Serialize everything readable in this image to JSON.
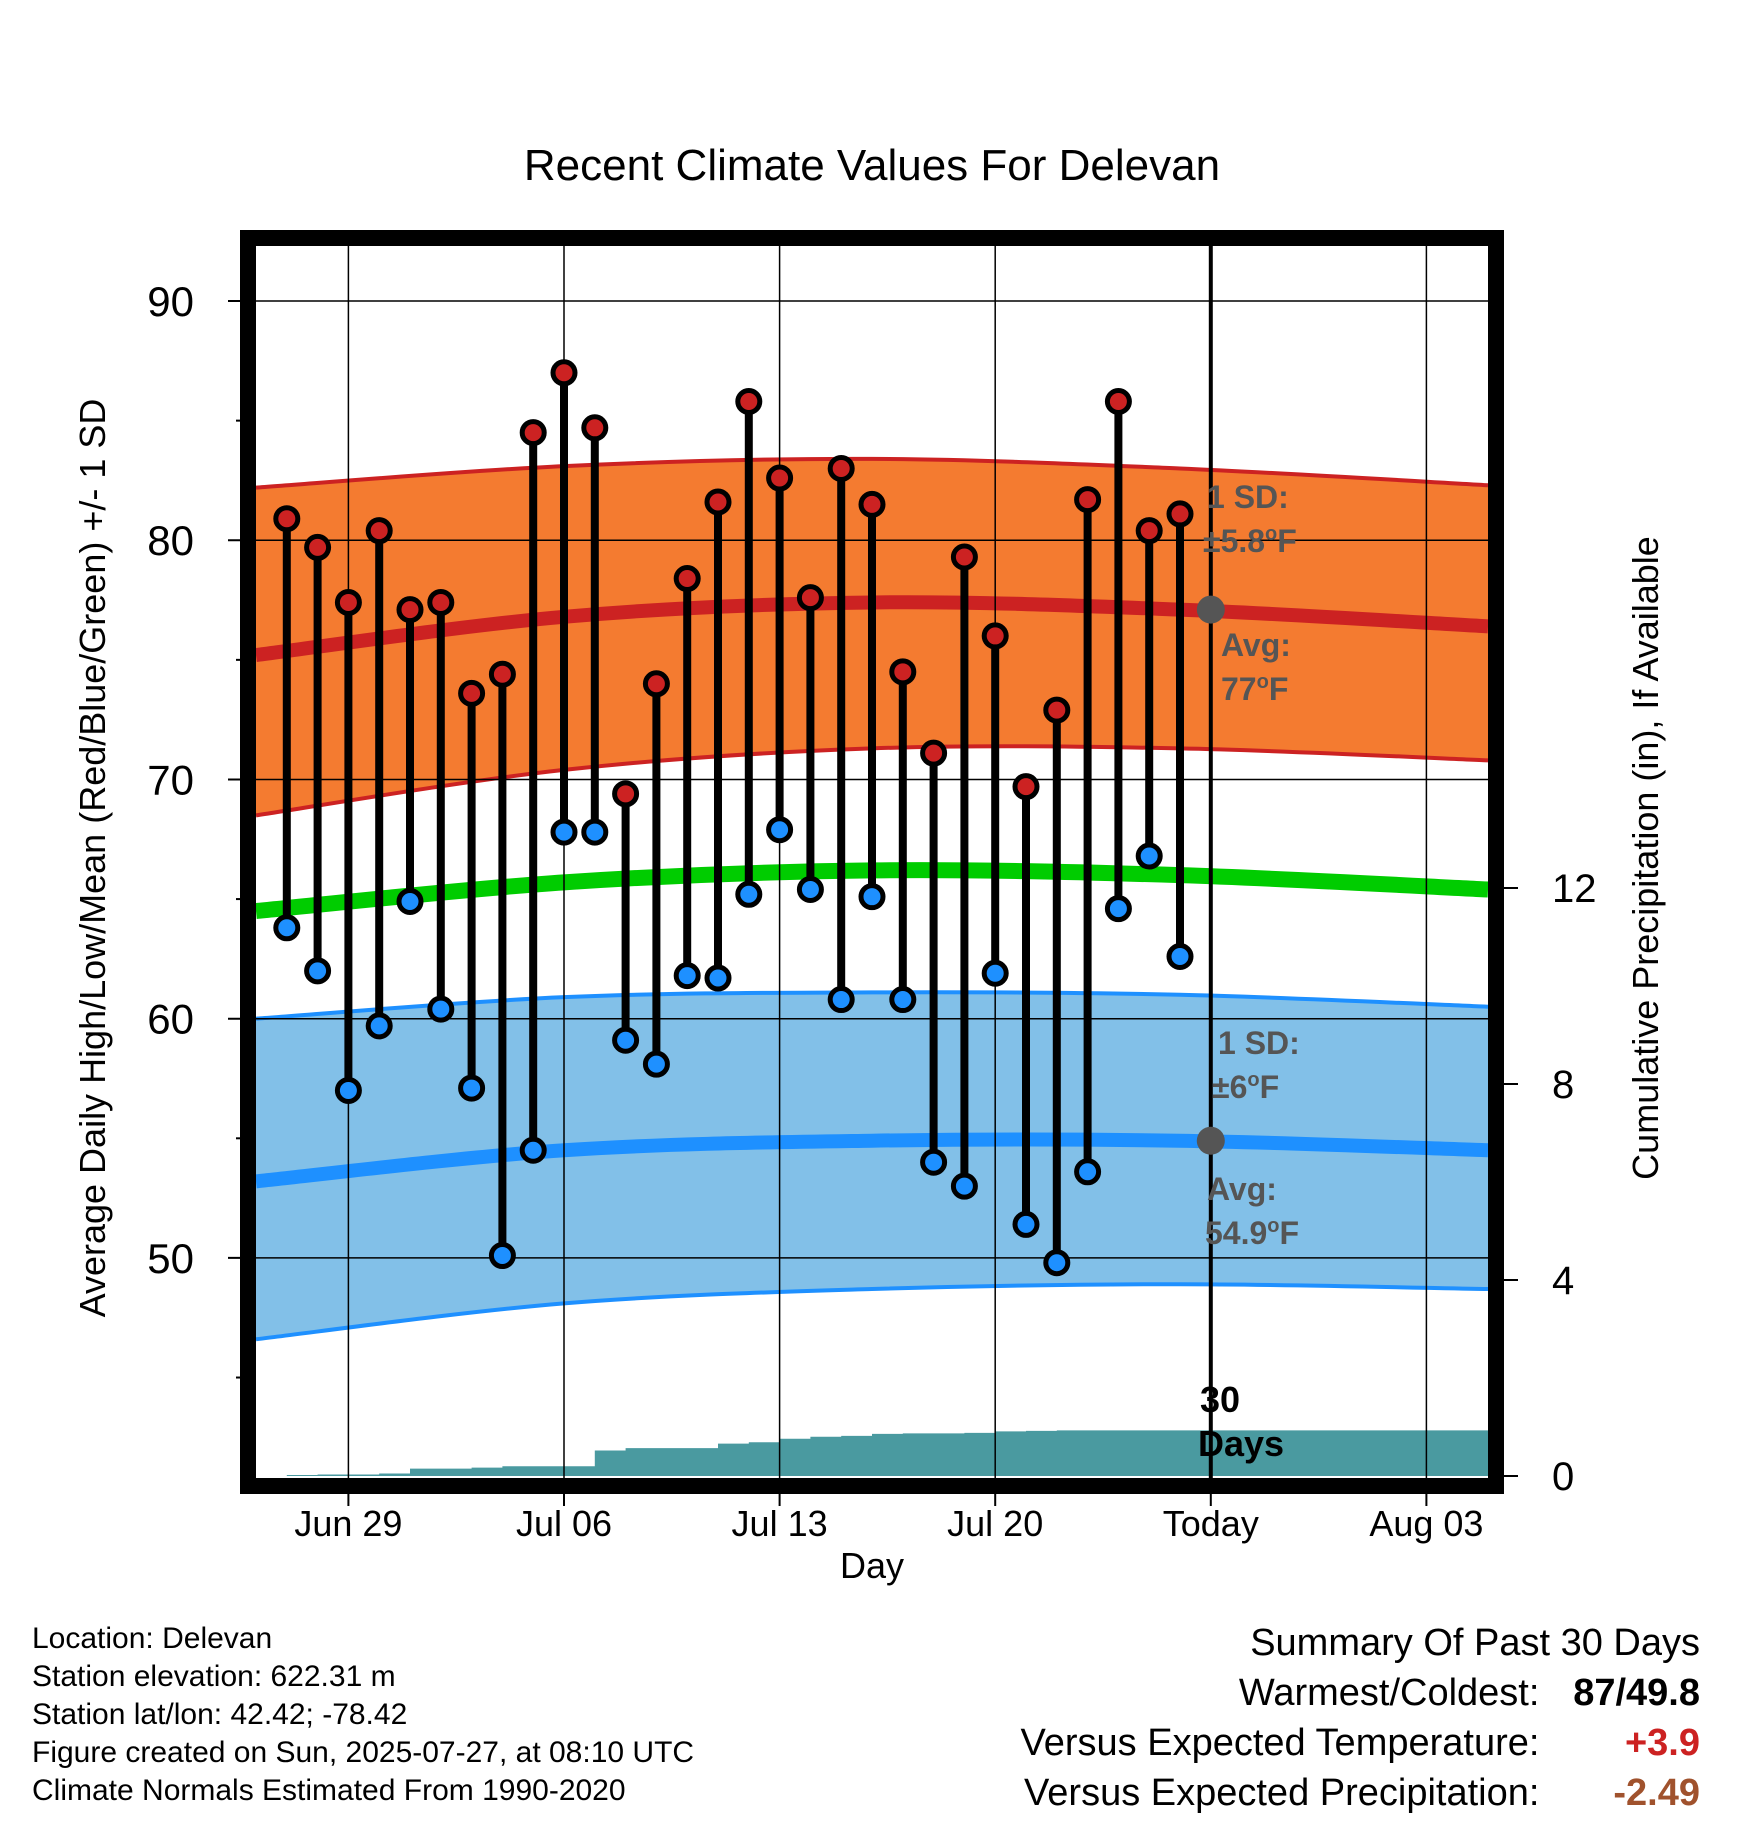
{
  "chart_data": {
    "type": "line",
    "title": "Recent Climate Values For Delevan",
    "xlabel": "Day",
    "ylabel": "Average Daily High/Low/Mean (Red/Blue/Green) +/- 1 SD",
    "y2label": "Cumulative Precipitation (in), If Available",
    "ylim": [
      40.8,
      92.3
    ],
    "y2lim": [
      0,
      12
    ],
    "y_ticks": [
      50,
      60,
      70,
      80,
      90
    ],
    "y2_ticks": [
      0,
      4,
      8,
      12
    ],
    "x_tick_labels": [
      "Jun 29",
      "Jul 06",
      "Jul 13",
      "Jul 20",
      "Today",
      "Aug 03"
    ],
    "x_range": [
      "2025-06-26",
      "2025-08-05"
    ],
    "today": "2025-07-27",
    "daily_dates": [
      "2025-06-27",
      "2025-06-28",
      "2025-06-29",
      "2025-06-30",
      "2025-07-01",
      "2025-07-02",
      "2025-07-03",
      "2025-07-04",
      "2025-07-05",
      "2025-07-06",
      "2025-07-07",
      "2025-07-08",
      "2025-07-09",
      "2025-07-10",
      "2025-07-11",
      "2025-07-12",
      "2025-07-13",
      "2025-07-14",
      "2025-07-15",
      "2025-07-16",
      "2025-07-17",
      "2025-07-18",
      "2025-07-19",
      "2025-07-20",
      "2025-07-21",
      "2025-07-22",
      "2025-07-23",
      "2025-07-24",
      "2025-07-25",
      "2025-07-26"
    ],
    "series": [
      {
        "name": "High",
        "color": "#cc2222",
        "values": [
          80.9,
          79.7,
          77.4,
          80.4,
          77.1,
          77.4,
          73.6,
          74.4,
          84.5,
          87.0,
          84.7,
          69.4,
          74.0,
          78.4,
          81.6,
          85.8,
          82.6,
          77.6,
          83.0,
          81.5,
          74.5,
          71.1,
          79.3,
          76.0,
          69.7,
          72.9,
          81.7,
          85.8,
          80.4,
          81.1
        ]
      },
      {
        "name": "Low",
        "color": "#1e90ff",
        "values": [
          63.8,
          62.0,
          57.0,
          59.7,
          64.9,
          60.4,
          57.1,
          50.1,
          54.5,
          67.8,
          67.8,
          59.1,
          58.1,
          61.8,
          61.7,
          65.2,
          67.9,
          65.4,
          60.8,
          65.1,
          60.8,
          54.0,
          53.0,
          61.9,
          51.4,
          49.8,
          53.6,
          64.6,
          66.8,
          62.6
        ]
      }
    ],
    "normal_curves_dates": [
      "2025-06-26",
      "2025-07-06",
      "2025-07-16",
      "2025-07-26",
      "2025-08-05"
    ],
    "normal_high": [
      75.2,
      76.8,
      77.4,
      77.1,
      76.4
    ],
    "normal_high_upper": [
      82.2,
      83.1,
      83.4,
      83.0,
      82.3
    ],
    "normal_high_lower": [
      68.5,
      70.4,
      71.3,
      71.3,
      70.8
    ],
    "normal_mean": [
      64.5,
      65.7,
      66.2,
      66.0,
      65.4
    ],
    "normal_low": [
      53.2,
      54.5,
      54.9,
      54.9,
      54.5
    ],
    "normal_low_upper": [
      60.0,
      60.9,
      61.1,
      61.0,
      60.5
    ],
    "normal_low_lower": [
      46.6,
      48.1,
      48.7,
      48.9,
      48.7
    ],
    "precip_dates": [
      "2025-06-26",
      "2025-06-27",
      "2025-06-28",
      "2025-06-29",
      "2025-06-30",
      "2025-07-01",
      "2025-07-02",
      "2025-07-03",
      "2025-07-04",
      "2025-07-05",
      "2025-07-06",
      "2025-07-07",
      "2025-07-08",
      "2025-07-09",
      "2025-07-10",
      "2025-07-11",
      "2025-07-12",
      "2025-07-13",
      "2025-07-14",
      "2025-07-15",
      "2025-07-16",
      "2025-07-17",
      "2025-07-18",
      "2025-07-19",
      "2025-07-20",
      "2025-07-21",
      "2025-07-22",
      "2025-07-23",
      "2025-07-24",
      "2025-07-25",
      "2025-07-26",
      "2025-07-27",
      "2025-08-05"
    ],
    "precip_cumulative": [
      0,
      0.02,
      0.03,
      0.03,
      0.05,
      0.15,
      0.15,
      0.17,
      0.2,
      0.2,
      0.2,
      0.52,
      0.57,
      0.57,
      0.57,
      0.66,
      0.69,
      0.76,
      0.8,
      0.82,
      0.86,
      0.87,
      0.87,
      0.88,
      0.91,
      0.92,
      0.93,
      0.93,
      0.93,
      0.93,
      0.93,
      0.93,
      0.93
    ],
    "annotations": {
      "high_sd_label": "1 SD:",
      "high_sd_value": "±5.8",
      "high_avg_label": "Avg:",
      "high_avg_value": "77",
      "low_sd_label": "1 SD:",
      "low_sd_value": "±6",
      "low_avg_label": "Avg:",
      "low_avg_value": "54.9",
      "degree_symbol": "o",
      "unit": "F",
      "window_label_1": "30",
      "window_label_2": "Days"
    },
    "colors": {
      "high_band": "#f47b30",
      "high_line": "#cc2222",
      "mean_line": "#00cc00",
      "low_band": "#82c0e8",
      "low_line": "#1e90ff",
      "precip": "#4a9aa0",
      "annotation_text": "#555555"
    },
    "grid": true,
    "legend": "none"
  },
  "info": {
    "location": "Location: Delevan",
    "elevation": "Station elevation: 622.31 m",
    "latlon": "Station lat/lon: 42.42; -78.42",
    "created": "Figure created on Sun, 2025-07-27, at 08:10 UTC",
    "normals": "Climate Normals Estimated From 1990-2020"
  },
  "summary": {
    "title": "Summary Of Past 30 Days",
    "warmest_label": "Warmest/Coldest:",
    "warmest_value": "87/49.8",
    "temp_label": "Versus Expected Temperature:",
    "temp_value": "+3.9",
    "temp_color": "#cc2222",
    "precip_label": "Versus Expected Precipitation:",
    "precip_value": "-2.49",
    "precip_color": "#a0522d"
  }
}
